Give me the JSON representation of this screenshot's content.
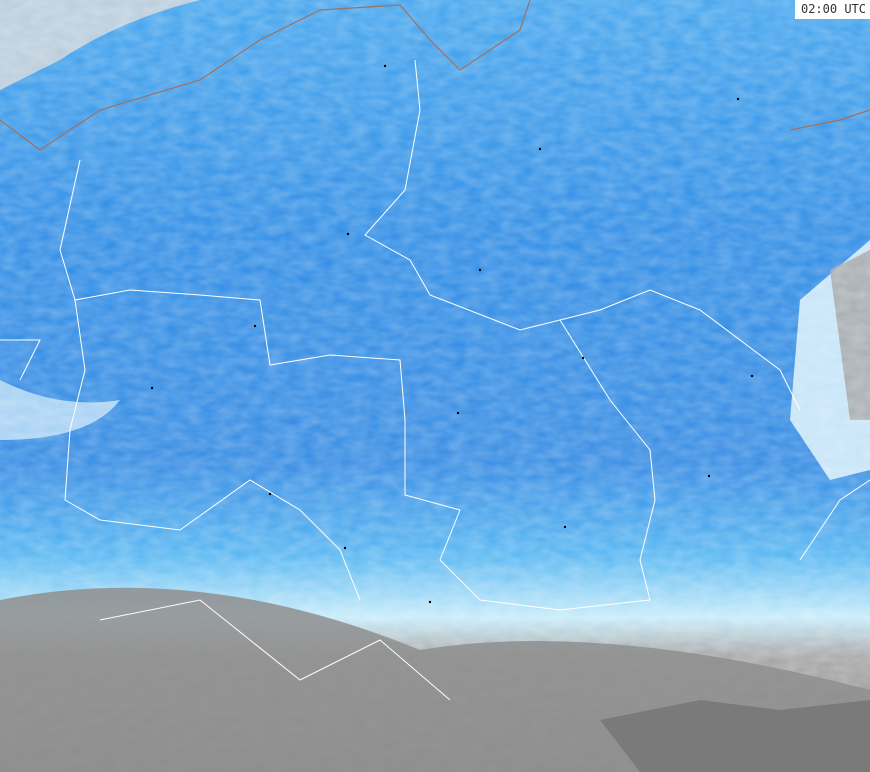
{
  "timestamp": "02:00 UTC",
  "colors": {
    "precip_light": "#e6f6fc",
    "precip_mid": "#3fa9f0",
    "precip_heavy": "#2b7fe0",
    "precip_intense": "#2040d0",
    "no_data_land": "#9a9a9a",
    "borders": "#ffffff",
    "coastline": "#a07060"
  }
}
